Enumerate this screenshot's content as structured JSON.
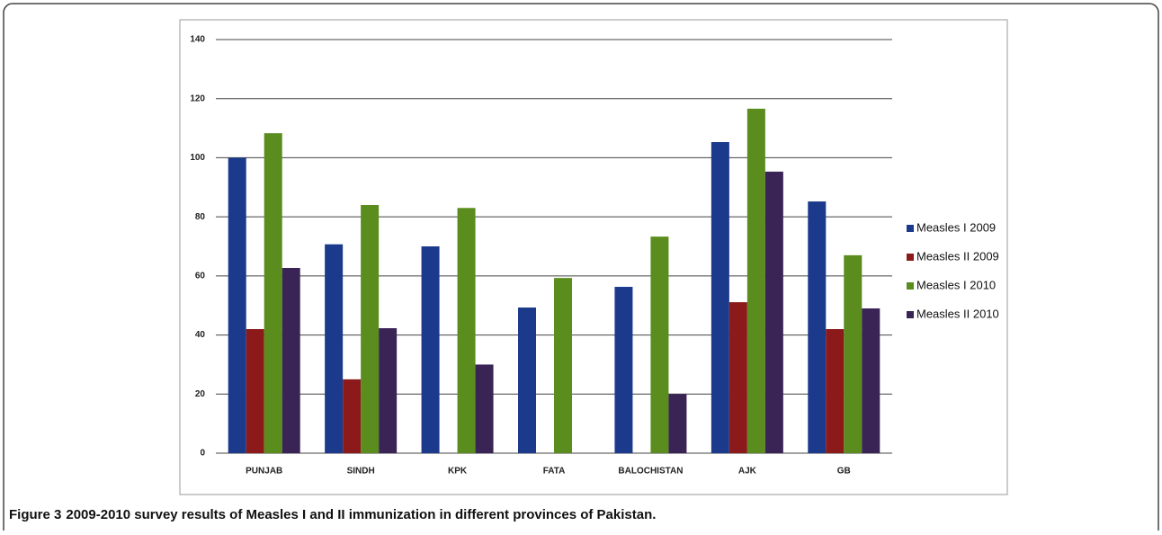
{
  "chart_data": {
    "type": "bar",
    "categories": [
      "PUNJAB",
      "SINDH",
      "KPK",
      "FATA",
      "BALOCHISTAN",
      "AJK",
      "GB"
    ],
    "series": [
      {
        "name": "Measles I 2009",
        "color": "#1c3a8c",
        "values": [
          100,
          70.7,
          70,
          49.3,
          56.3,
          105.3,
          85.2
        ]
      },
      {
        "name": "Measles II 2009",
        "color": "#8c1a1a",
        "values": [
          42,
          25,
          null,
          null,
          null,
          51.1,
          42
        ]
      },
      {
        "name": "Measles I 2010",
        "color": "#5a8c1e",
        "values": [
          108.3,
          84,
          83,
          59.3,
          73.3,
          116.6,
          67
        ]
      },
      {
        "name": "Measles II 2010",
        "color": "#3a2456",
        "values": [
          62.7,
          42.3,
          30,
          null,
          20,
          95.3,
          49
        ]
      }
    ],
    "ylim": [
      0,
      140
    ],
    "yticks": [
      0,
      20,
      40,
      60,
      80,
      100,
      120,
      140
    ],
    "grid": true,
    "legend": "right"
  },
  "caption": {
    "label": "Figure 3",
    "text": "2009-2010 survey results of Measles I and II immunization in different provinces of Pakistan."
  }
}
